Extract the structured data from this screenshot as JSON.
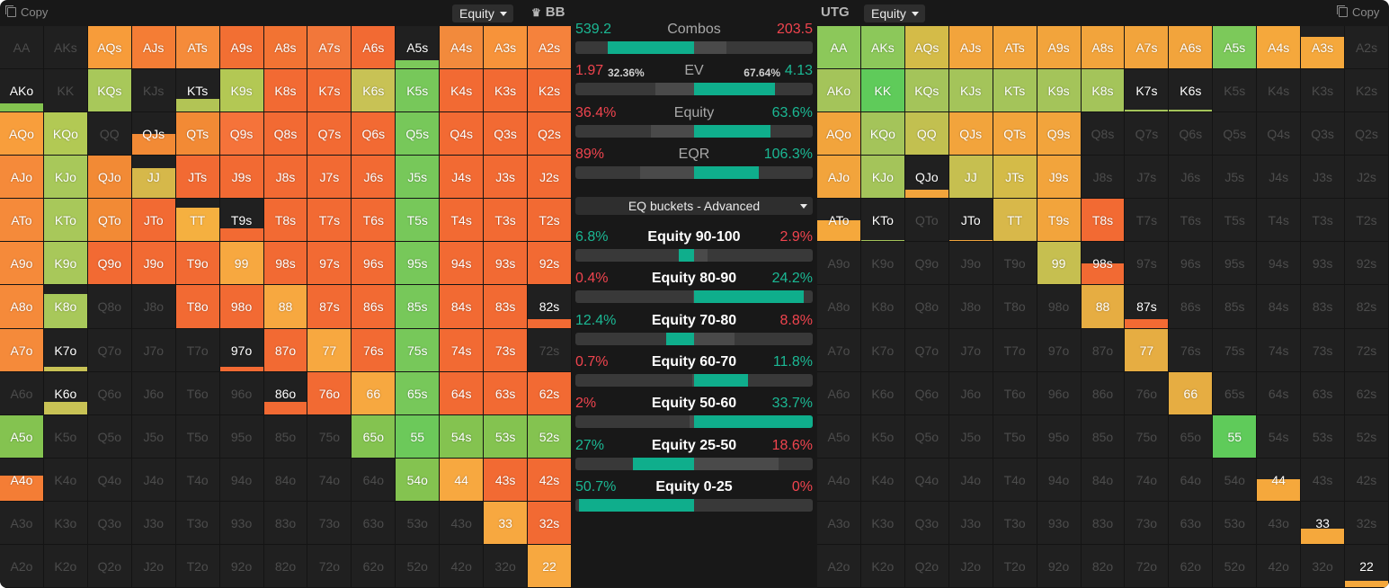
{
  "left_panel": {
    "copy_label": "Copy",
    "metric_dropdown": "Equity",
    "position_label": "BB",
    "position_icon": "crown-icon",
    "hands": [
      [
        "AA",
        "AKs",
        "AQs",
        "AJs",
        "ATs",
        "A9s",
        "A8s",
        "A7s",
        "A6s",
        "A5s",
        "A4s",
        "A3s",
        "A2s"
      ],
      [
        "AKo",
        "KK",
        "KQs",
        "KJs",
        "KTs",
        "K9s",
        "K8s",
        "K7s",
        "K6s",
        "K5s",
        "K4s",
        "K3s",
        "K2s"
      ],
      [
        "AQo",
        "KQo",
        "QQ",
        "QJs",
        "QTs",
        "Q9s",
        "Q8s",
        "Q7s",
        "Q6s",
        "Q5s",
        "Q4s",
        "Q3s",
        "Q2s"
      ],
      [
        "AJo",
        "KJo",
        "QJo",
        "JJ",
        "JTs",
        "J9s",
        "J8s",
        "J7s",
        "J6s",
        "J5s",
        "J4s",
        "J3s",
        "J2s"
      ],
      [
        "ATo",
        "KTo",
        "QTo",
        "JTo",
        "TT",
        "T9s",
        "T8s",
        "T7s",
        "T6s",
        "T5s",
        "T4s",
        "T3s",
        "T2s"
      ],
      [
        "A9o",
        "K9o",
        "Q9o",
        "J9o",
        "T9o",
        "99",
        "98s",
        "97s",
        "96s",
        "95s",
        "94s",
        "93s",
        "92s"
      ],
      [
        "A8o",
        "K8o",
        "Q8o",
        "J8o",
        "T8o",
        "98o",
        "88",
        "87s",
        "86s",
        "85s",
        "84s",
        "83s",
        "82s"
      ],
      [
        "A7o",
        "K7o",
        "Q7o",
        "J7o",
        "T7o",
        "97o",
        "87o",
        "77",
        "76s",
        "75s",
        "74s",
        "73s",
        "72s"
      ],
      [
        "A6o",
        "K6o",
        "Q6o",
        "J6o",
        "T6o",
        "96o",
        "86o",
        "76o",
        "66",
        "65s",
        "64s",
        "63s",
        "62s"
      ],
      [
        "A5o",
        "K5o",
        "Q5o",
        "J5o",
        "T5o",
        "95o",
        "85o",
        "75o",
        "65o",
        "55",
        "54s",
        "53s",
        "52s"
      ],
      [
        "A4o",
        "K4o",
        "Q4o",
        "J4o",
        "T4o",
        "94o",
        "84o",
        "74o",
        "64o",
        "54o",
        "44",
        "43s",
        "42s"
      ],
      [
        "A3o",
        "K3o",
        "Q3o",
        "J3o",
        "T3o",
        "93o",
        "83o",
        "73o",
        "63o",
        "53o",
        "43o",
        "33",
        "32s"
      ],
      [
        "A2o",
        "K2o",
        "Q2o",
        "J2o",
        "T2o",
        "92o",
        "82o",
        "72o",
        "62o",
        "52o",
        "42o",
        "32o",
        "22"
      ]
    ],
    "frequency": [
      [
        0,
        0,
        1,
        1,
        1,
        1,
        1,
        1,
        1,
        0.2,
        1,
        1,
        1
      ],
      [
        0.2,
        0,
        1,
        0,
        0.3,
        1,
        1,
        1,
        1,
        1,
        1,
        1,
        1
      ],
      [
        1,
        1,
        0,
        0.5,
        1,
        1,
        1,
        1,
        1,
        1,
        1,
        1,
        1
      ],
      [
        1,
        1,
        1,
        0.7,
        1,
        1,
        1,
        1,
        1,
        1,
        1,
        1,
        1
      ],
      [
        1,
        1,
        1,
        1,
        0.8,
        0.3,
        1,
        1,
        1,
        1,
        1,
        1,
        1
      ],
      [
        1,
        1,
        1,
        1,
        1,
        1,
        1,
        1,
        1,
        1,
        1,
        1,
        1
      ],
      [
        1,
        0.8,
        0,
        0,
        1,
        1,
        1,
        1,
        1,
        1,
        1,
        1,
        0.2
      ],
      [
        1,
        0.1,
        0,
        0,
        0,
        0.1,
        1,
        1,
        1,
        1,
        1,
        1,
        0
      ],
      [
        0,
        0.3,
        0,
        0,
        0,
        0,
        0.3,
        1,
        1,
        1,
        1,
        1,
        1
      ],
      [
        1,
        0,
        0,
        0,
        0,
        0,
        0,
        0,
        1,
        1,
        1,
        1,
        1
      ],
      [
        0.6,
        0,
        0,
        0,
        0,
        0,
        0,
        0,
        0,
        1,
        1,
        1,
        1
      ],
      [
        0,
        0,
        0,
        0,
        0,
        0,
        0,
        0,
        0,
        0,
        0,
        1,
        1
      ],
      [
        0,
        0,
        0,
        0,
        0,
        0,
        0,
        0,
        0,
        0,
        0,
        0,
        1
      ]
    ],
    "colors": [
      [
        "#2b2b2b",
        "#2b2b2b",
        "#f79c3a",
        "#f47d35",
        "#f58b3a",
        "#f26f33",
        "#f27333",
        "#f2773a",
        "#f26a33",
        "#7cc95a",
        "#f28a3c",
        "#f7933a",
        "#f5823c"
      ],
      [
        "#84c350",
        "#2b2b2b",
        "#a8c85a",
        "#2b2b2b",
        "#b2c455",
        "#b3c854",
        "#f26a33",
        "#f26a33",
        "#c8c255",
        "#77c85a",
        "#f26a33",
        "#f26a33",
        "#f26a33"
      ],
      [
        "#f89e3c",
        "#b2c954",
        "#2b2b2b",
        "#f28a35",
        "#f28a35",
        "#f5733a",
        "#f26a33",
        "#f26a33",
        "#f26a33",
        "#77c85a",
        "#f26a33",
        "#f26a33",
        "#f26a33"
      ],
      [
        "#f58a3a",
        "#a8c85a",
        "#f28a35",
        "#d6b84a",
        "#f26a33",
        "#f26a33",
        "#f26a33",
        "#f26a33",
        "#f26a33",
        "#77c85a",
        "#f26a33",
        "#f26a33",
        "#f26a33"
      ],
      [
        "#f58a3a",
        "#a8c85a",
        "#f28a35",
        "#f26a33",
        "#f5b040",
        "#f26a33",
        "#f26a33",
        "#f26a33",
        "#f26a33",
        "#77c85a",
        "#f26a33",
        "#f26a33",
        "#f26a33"
      ],
      [
        "#f58a3a",
        "#a8c85a",
        "#f26a33",
        "#f26a33",
        "#f26a33",
        "#f7a840",
        "#f26a33",
        "#f26a33",
        "#f26a33",
        "#77c85a",
        "#f26a33",
        "#f26a33",
        "#f26a33"
      ],
      [
        "#f58a3a",
        "#a8c85a",
        "#2b2b2b",
        "#2b2b2b",
        "#f26a33",
        "#f26a33",
        "#f7a840",
        "#f26a33",
        "#f26a33",
        "#77c85a",
        "#f26a33",
        "#f26a33",
        "#f26a33"
      ],
      [
        "#f58a3a",
        "#c8c255",
        "#2b2b2b",
        "#2b2b2b",
        "#2b2b2b",
        "#f26a33",
        "#f26a33",
        "#f7a840",
        "#f26a33",
        "#77c85a",
        "#f26a33",
        "#f26a33",
        "#2b2b2b"
      ],
      [
        "#2b2b2b",
        "#c8c255",
        "#2b2b2b",
        "#2b2b2b",
        "#2b2b2b",
        "#2b2b2b",
        "#f26a33",
        "#f26a33",
        "#f7a840",
        "#77c85a",
        "#f26a33",
        "#f26a33",
        "#f26a33"
      ],
      [
        "#84c350",
        "#2b2b2b",
        "#2b2b2b",
        "#2b2b2b",
        "#2b2b2b",
        "#2b2b2b",
        "#2b2b2b",
        "#2b2b2b",
        "#84c350",
        "#6cc95a",
        "#84c350",
        "#84c350",
        "#84c350"
      ],
      [
        "#f47d35",
        "#2b2b2b",
        "#2b2b2b",
        "#2b2b2b",
        "#2b2b2b",
        "#2b2b2b",
        "#2b2b2b",
        "#2b2b2b",
        "#2b2b2b",
        "#84c350",
        "#f7a840",
        "#f26a33",
        "#f26a33"
      ],
      [
        "#2b2b2b",
        "#2b2b2b",
        "#2b2b2b",
        "#2b2b2b",
        "#2b2b2b",
        "#2b2b2b",
        "#2b2b2b",
        "#2b2b2b",
        "#2b2b2b",
        "#2b2b2b",
        "#2b2b2b",
        "#f7a840",
        "#f26a33"
      ],
      [
        "#2b2b2b",
        "#2b2b2b",
        "#2b2b2b",
        "#2b2b2b",
        "#2b2b2b",
        "#2b2b2b",
        "#2b2b2b",
        "#2b2b2b",
        "#2b2b2b",
        "#2b2b2b",
        "#2b2b2b",
        "#2b2b2b",
        "#f7a840"
      ]
    ]
  },
  "right_panel": {
    "position_label": "UTG",
    "metric_dropdown": "Equity",
    "copy_label": "Copy",
    "frequency": [
      [
        1,
        1,
        1,
        1,
        1,
        1,
        1,
        1,
        1,
        1,
        1,
        0.75,
        0
      ],
      [
        1,
        1,
        1,
        1,
        1,
        1,
        1,
        0.05,
        0.05,
        0,
        0,
        0,
        0
      ],
      [
        1,
        1,
        1,
        1,
        1,
        1,
        0,
        0,
        0,
        0,
        0,
        0,
        0
      ],
      [
        1,
        1,
        0.2,
        1,
        1,
        1,
        0,
        0,
        0,
        0,
        0,
        0,
        0
      ],
      [
        0.5,
        0.02,
        0,
        0.02,
        1,
        1,
        1,
        0,
        0,
        0,
        0,
        0,
        0
      ],
      [
        0,
        0,
        0,
        0,
        0,
        1,
        0.5,
        0,
        0,
        0,
        0,
        0,
        0
      ],
      [
        0,
        0,
        0,
        0,
        0,
        0,
        1,
        0.2,
        0,
        0,
        0,
        0,
        0
      ],
      [
        0,
        0,
        0,
        0,
        0,
        0,
        0,
        1,
        0,
        0,
        0,
        0,
        0
      ],
      [
        0,
        0,
        0,
        0,
        0,
        0,
        0,
        0,
        1,
        0,
        0,
        0,
        0
      ],
      [
        0,
        0,
        0,
        0,
        0,
        0,
        0,
        0,
        0,
        1,
        0,
        0,
        0
      ],
      [
        0,
        0,
        0,
        0,
        0,
        0,
        0,
        0,
        0,
        0,
        0.5,
        0,
        0
      ],
      [
        0,
        0,
        0,
        0,
        0,
        0,
        0,
        0,
        0,
        0,
        0,
        0.35,
        0
      ],
      [
        0,
        0,
        0,
        0,
        0,
        0,
        0,
        0,
        0,
        0,
        0,
        0,
        0.15
      ]
    ],
    "colors": [
      [
        "#8cc85a",
        "#8cc85a",
        "#d4bb48",
        "#f2a43c",
        "#f2a43c",
        "#f2a43c",
        "#f2a43c",
        "#f2a43c",
        "#f2a43c",
        "#7cc95a",
        "#f5a83c",
        "#f5a83c",
        "#2b2b2b"
      ],
      [
        "#a4c45a",
        "#5fcb5a",
        "#a4c45a",
        "#a4c45a",
        "#a4c45a",
        "#a4c45a",
        "#a4c45a",
        "#a4c45a",
        "#a4c45a",
        "#2b2b2b",
        "#2b2b2b",
        "#2b2b2b",
        "#2b2b2b"
      ],
      [
        "#f2a43c",
        "#a4c45a",
        "#c2c050",
        "#f2a43c",
        "#f2a43c",
        "#f2a43c",
        "#2b2b2b",
        "#2b2b2b",
        "#2b2b2b",
        "#2b2b2b",
        "#2b2b2b",
        "#2b2b2b",
        "#2b2b2b"
      ],
      [
        "#f2a43c",
        "#a4c45a",
        "#f2a43c",
        "#c6bf50",
        "#d4bb48",
        "#f2a43c",
        "#2b2b2b",
        "#2b2b2b",
        "#2b2b2b",
        "#2b2b2b",
        "#2b2b2b",
        "#2b2b2b",
        "#2b2b2b"
      ],
      [
        "#f5a83c",
        "#a4c45a",
        "#2b2b2b",
        "#f2a43c",
        "#d8b84a",
        "#f2a43c",
        "#f26a33",
        "#2b2b2b",
        "#2b2b2b",
        "#2b2b2b",
        "#2b2b2b",
        "#2b2b2b",
        "#2b2b2b"
      ],
      [
        "#2b2b2b",
        "#2b2b2b",
        "#2b2b2b",
        "#2b2b2b",
        "#2b2b2b",
        "#c6bf50",
        "#f26a33",
        "#2b2b2b",
        "#2b2b2b",
        "#2b2b2b",
        "#2b2b2b",
        "#2b2b2b",
        "#2b2b2b"
      ],
      [
        "#2b2b2b",
        "#2b2b2b",
        "#2b2b2b",
        "#2b2b2b",
        "#2b2b2b",
        "#2b2b2b",
        "#e6ad42",
        "#f26a33",
        "#2b2b2b",
        "#2b2b2b",
        "#2b2b2b",
        "#2b2b2b",
        "#2b2b2b"
      ],
      [
        "#2b2b2b",
        "#2b2b2b",
        "#2b2b2b",
        "#2b2b2b",
        "#2b2b2b",
        "#2b2b2b",
        "#2b2b2b",
        "#e6ad42",
        "#2b2b2b",
        "#2b2b2b",
        "#2b2b2b",
        "#2b2b2b",
        "#2b2b2b"
      ],
      [
        "#2b2b2b",
        "#2b2b2b",
        "#2b2b2b",
        "#2b2b2b",
        "#2b2b2b",
        "#2b2b2b",
        "#2b2b2b",
        "#2b2b2b",
        "#e6ad42",
        "#2b2b2b",
        "#2b2b2b",
        "#2b2b2b",
        "#2b2b2b"
      ],
      [
        "#2b2b2b",
        "#2b2b2b",
        "#2b2b2b",
        "#2b2b2b",
        "#2b2b2b",
        "#2b2b2b",
        "#2b2b2b",
        "#2b2b2b",
        "#2b2b2b",
        "#5fcb5a",
        "#2b2b2b",
        "#2b2b2b",
        "#2b2b2b"
      ],
      [
        "#2b2b2b",
        "#2b2b2b",
        "#2b2b2b",
        "#2b2b2b",
        "#2b2b2b",
        "#2b2b2b",
        "#2b2b2b",
        "#2b2b2b",
        "#2b2b2b",
        "#2b2b2b",
        "#f5a83c",
        "#2b2b2b",
        "#2b2b2b"
      ],
      [
        "#2b2b2b",
        "#2b2b2b",
        "#2b2b2b",
        "#2b2b2b",
        "#2b2b2b",
        "#2b2b2b",
        "#2b2b2b",
        "#2b2b2b",
        "#2b2b2b",
        "#2b2b2b",
        "#2b2b2b",
        "#f5a83c",
        "#2b2b2b"
      ],
      [
        "#2b2b2b",
        "#2b2b2b",
        "#2b2b2b",
        "#2b2b2b",
        "#2b2b2b",
        "#2b2b2b",
        "#2b2b2b",
        "#2b2b2b",
        "#2b2b2b",
        "#2b2b2b",
        "#2b2b2b",
        "#2b2b2b",
        "#f5a83c"
      ]
    ]
  },
  "summary": {
    "combos": {
      "label": "Combos",
      "left": "539.2",
      "right": "203.5",
      "left_share": 0.726
    },
    "ev": {
      "label": "EV",
      "left": "1.97",
      "left_pct": "32.36%",
      "right_pct": "67.64%",
      "right": "4.13",
      "left_share": 0.3236
    },
    "equity": {
      "label": "Equity",
      "left": "36.4%",
      "right": "63.6%",
      "left_share": 0.364
    },
    "eqr": {
      "label": "EQR",
      "left": "89%",
      "right": "106.3%",
      "left_share": 0.456
    }
  },
  "buckets_dropdown": "EQ buckets - Advanced",
  "buckets": [
    {
      "label": "Equity 90-100",
      "left": "6.8%",
      "right": "2.9%",
      "left_value": 6.8,
      "right_value": 2.9
    },
    {
      "label": "Equity 80-90",
      "left": "0.4%",
      "right": "24.2%",
      "left_value": 0.4,
      "right_value": 24.2
    },
    {
      "label": "Equity 70-80",
      "left": "12.4%",
      "right": "8.8%",
      "left_value": 12.4,
      "right_value": 8.8
    },
    {
      "label": "Equity 60-70",
      "left": "0.7%",
      "right": "11.8%",
      "left_value": 0.7,
      "right_value": 11.8
    },
    {
      "label": "Equity 50-60",
      "left": "2%",
      "right": "33.7%",
      "left_value": 2,
      "right_value": 33.7
    },
    {
      "label": "Equity 25-50",
      "left": "27%",
      "right": "18.6%",
      "left_value": 27,
      "right_value": 18.6
    },
    {
      "label": "Equity 0-25",
      "left": "50.7%",
      "right": "0%",
      "left_value": 50.7,
      "right_value": 0
    }
  ],
  "colors": {
    "accent_teal": "#0fae8c",
    "positive": "#1bb894",
    "negative": "#f0444e",
    "bar_bg": "#393939",
    "bar_dim": "#4a4a4a"
  }
}
